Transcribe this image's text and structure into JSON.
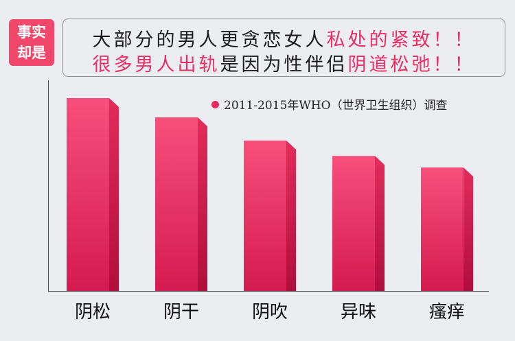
{
  "badge": {
    "line1": "事实",
    "line2": "却是"
  },
  "headline": {
    "line1_dark": "大部分的男人更贪恋女人",
    "line1_pink": "私处的紧致！！",
    "line2_pink_a": "很多男人出轨",
    "line2_dark": "是因为性伴侣",
    "line2_pink_b": "阴道松弛！！"
  },
  "colors": {
    "accent": "#f0476b",
    "pink_text": "#ea2f66",
    "bar_top": "#f24a78",
    "bar_bottom": "#c81346"
  },
  "chart_data": {
    "type": "bar",
    "categories": [
      "阴松",
      "阴干",
      "阴吹",
      "异味",
      "瘙痒"
    ],
    "values": [
      100,
      90,
      78,
      70,
      64
    ],
    "legend": "2011-2015年WHO（世界卫生组织）调查",
    "title": "",
    "xlabel": "",
    "ylabel": "",
    "ylim": [
      0,
      100
    ],
    "grid": false,
    "legend_position": "top-right"
  }
}
